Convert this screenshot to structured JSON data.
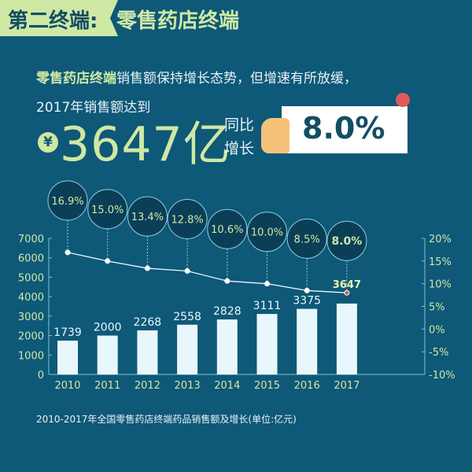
{
  "header": {
    "section": "第二终端:",
    "title": "零售药店终端"
  },
  "intro": {
    "highlight": "零售药店终端",
    "text": "销售额保持增长态势，但增速有所放缓，",
    "line2": "2017年销售额达到"
  },
  "headline": {
    "currency_symbol": "¥",
    "amount": "3647亿",
    "yoy_label_1": "同比",
    "yoy_label_2": "增长",
    "yoy_value": "8.0%"
  },
  "colors": {
    "background": "#0e5878",
    "accent": "#cfe8a4",
    "bar": "#e8f7fb",
    "line": "#e8f7fb",
    "highlight_point": "#e05a5a"
  },
  "chart_data": {
    "type": "bar+line",
    "categories": [
      "2010",
      "2011",
      "2012",
      "2013",
      "2014",
      "2015",
      "2016",
      "2017"
    ],
    "series": [
      {
        "type": "bar",
        "axis": "left",
        "values": [
          1739,
          2000,
          2268,
          2558,
          2828,
          3111,
          3375,
          3647
        ],
        "labels": [
          "1739",
          "2000",
          "2268",
          "2558",
          "2828",
          "3111",
          "3375",
          "3647"
        ]
      },
      {
        "type": "line",
        "axis": "right",
        "values": [
          16.9,
          15.0,
          13.4,
          12.8,
          10.6,
          10.0,
          8.5,
          8.0
        ],
        "labels": [
          "16.9%",
          "15.0%",
          "13.4%",
          "12.8%",
          "10.6%",
          "10.0%",
          "8.5%",
          "8.0%"
        ]
      }
    ],
    "y_left": {
      "range": [
        0,
        7000
      ],
      "ticks": [
        "0",
        "1000",
        "2000",
        "3000",
        "4000",
        "5000",
        "6000",
        "7000"
      ]
    },
    "y_right": {
      "range": [
        -10,
        20
      ],
      "ticks": [
        "-10%",
        "-5%",
        "0%",
        "5%",
        "10%",
        "15%",
        "20%"
      ]
    },
    "grid": false,
    "caption": "2010-2017年全国零售药店终端药品销售额及增长(单位:亿元)"
  }
}
